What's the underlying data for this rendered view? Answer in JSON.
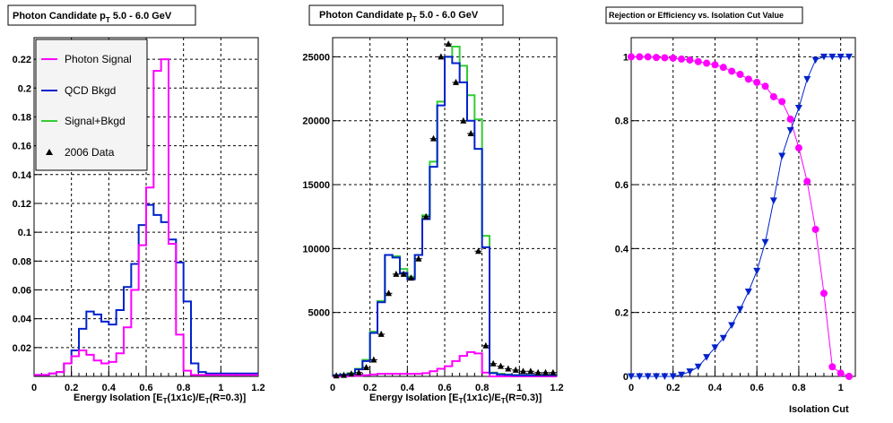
{
  "chart_data": [
    {
      "type": "step",
      "title_main": "Photon Candidate p",
      "title_sub": "T",
      "title_rest": " 5.0 - 6.0 GeV",
      "xlabel": "Energy Isolation [E",
      "xlabel_sub1": "T",
      "xlabel_mid": "(1x1c)/E",
      "xlabel_sub2": "T",
      "xlabel_end": "(R=0.3)]",
      "xlim": [
        0,
        1.2
      ],
      "ylim": [
        0,
        0.235
      ],
      "grid": true,
      "xticks": [
        "0",
        "0.2",
        "0.4",
        "0.6",
        "0.8",
        "1",
        "1.2"
      ],
      "xtick_values": [
        0,
        0.2,
        0.4,
        0.6,
        0.8,
        1.0,
        1.2
      ],
      "yticks": [
        "0.02",
        "0.04",
        "0.06",
        "0.08",
        "0.1",
        "0.12",
        "0.14",
        "0.16",
        "0.18",
        "0.2",
        "0.22"
      ],
      "ytick_values": [
        0.02,
        0.04,
        0.06,
        0.08,
        0.1,
        0.12,
        0.14,
        0.16,
        0.18,
        0.2,
        0.22
      ],
      "bin_width": 0.04,
      "series": [
        {
          "name": "Photon Signal",
          "color": "#ff00ff",
          "values": [
            0.001,
            0.001,
            0.002,
            0.003,
            0.009,
            0.014,
            0.018,
            0.015,
            0.011,
            0.009,
            0.01,
            0.016,
            0.034,
            0.06,
            0.091,
            0.131,
            0.212,
            0.22,
            0.092,
            0.029,
            0.004,
            0.001,
            0.001,
            0.001,
            0.001,
            0.001,
            0.001,
            0.001,
            0.001,
            0.001
          ]
        },
        {
          "name": "QCD Bkgd",
          "color": "#0022cc",
          "values": [
            0.001,
            0.001,
            0.002,
            0.003,
            0.009,
            0.018,
            0.033,
            0.045,
            0.043,
            0.038,
            0.036,
            0.046,
            0.062,
            0.078,
            0.105,
            0.119,
            0.112,
            0.107,
            0.095,
            0.079,
            0.052,
            0.009,
            0.003,
            0.002,
            0.002,
            0.002,
            0.002,
            0.002,
            0.002,
            0.002
          ]
        }
      ],
      "legend": {
        "position": "top-left",
        "entries": [
          {
            "label": "Photon Signal",
            "color": "#ff00ff",
            "marker": "line"
          },
          {
            "label": "QCD Bkgd",
            "color": "#0022cc",
            "marker": "line"
          },
          {
            "label": "Signal+Bkgd",
            "color": "#33cc33",
            "marker": "line"
          },
          {
            "label": "2006 Data",
            "color": "#000000",
            "marker": "triangle"
          }
        ]
      }
    },
    {
      "type": "step",
      "title_main": "Photon Candidate p",
      "title_sub": "T",
      "title_rest": " 5.0 - 6.0 GeV",
      "xlabel": "Energy Isolation [E",
      "xlabel_sub1": "T",
      "xlabel_mid": "(1x1c)/E",
      "xlabel_sub2": "T",
      "xlabel_end": "(R=0.3)]",
      "xlim": [
        0,
        1.2
      ],
      "ylim": [
        0,
        26500
      ],
      "grid": true,
      "xticks": [
        "0",
        "0.2",
        "0.4",
        "0.6",
        "0.8",
        "1",
        "1.2"
      ],
      "xtick_values": [
        0,
        0.2,
        0.4,
        0.6,
        0.8,
        1.0,
        1.2
      ],
      "yticks": [
        "5000",
        "10000",
        "15000",
        "20000",
        "25000"
      ],
      "ytick_values": [
        5000,
        10000,
        15000,
        20000,
        25000
      ],
      "bin_width": 0.04,
      "series": [
        {
          "name": "Photon Signal",
          "color": "#ff00ff",
          "values": [
            0,
            20,
            30,
            50,
            100,
            150,
            200,
            200,
            200,
            200,
            200,
            200,
            250,
            400,
            600,
            800,
            1200,
            1600,
            1900,
            1800,
            300,
            0,
            0,
            0,
            0,
            0,
            0,
            0,
            0,
            0
          ]
        },
        {
          "name": "Signal+Bkgd",
          "color": "#33cc33",
          "values": [
            100,
            150,
            250,
            600,
            1300,
            3500,
            5900,
            9500,
            9400,
            8400,
            7800,
            9500,
            12600,
            16800,
            21500,
            25000,
            25800,
            24300,
            22000,
            20100,
            11000,
            300,
            200,
            150,
            100,
            100,
            100,
            100,
            100,
            100
          ]
        },
        {
          "name": "QCD Bkgd",
          "color": "#0022cc",
          "values": [
            100,
            130,
            200,
            550,
            1200,
            3400,
            5800,
            9500,
            9300,
            8100,
            7600,
            9500,
            12300,
            16400,
            21200,
            25000,
            24500,
            23000,
            20000,
            17800,
            10100,
            250,
            150,
            120,
            100,
            100,
            100,
            100,
            100,
            100
          ]
        }
      ],
      "data_points": {
        "name": "2006 Data",
        "x": [
          0.02,
          0.06,
          0.1,
          0.14,
          0.18,
          0.22,
          0.26,
          0.3,
          0.34,
          0.38,
          0.42,
          0.46,
          0.5,
          0.54,
          0.58,
          0.62,
          0.66,
          0.7,
          0.74,
          0.78,
          0.82,
          0.86,
          0.9,
          0.94,
          0.98,
          1.02,
          1.06,
          1.1,
          1.14,
          1.18
        ],
        "y": [
          50,
          100,
          200,
          300,
          700,
          1300,
          3300,
          6500,
          8000,
          8000,
          7700,
          9200,
          12500,
          18600,
          25000,
          26000,
          23000,
          20000,
          19000,
          9800,
          2400,
          1000,
          800,
          600,
          500,
          400,
          400,
          300,
          300,
          300
        ]
      }
    },
    {
      "type": "line",
      "title": "Rejection or Efficiency vs. Isolation Cut Value",
      "xlabel": "Isolation Cut",
      "xlim": [
        0,
        1.07
      ],
      "ylim": [
        0,
        1.06
      ],
      "grid": true,
      "xticks": [
        "0",
        "0.2",
        "0.4",
        "0.6",
        "0.8",
        "1"
      ],
      "xtick_values": [
        0,
        0.2,
        0.4,
        0.6,
        0.8,
        1.0
      ],
      "yticks": [
        "0",
        "0.2",
        "0.4",
        "0.6",
        "0.8",
        "1"
      ],
      "ytick_values": [
        0,
        0.2,
        0.4,
        0.6,
        0.8,
        1.0
      ],
      "series": [
        {
          "color": "#ff00ff",
          "marker": "circle",
          "x": [
            0.0,
            0.04,
            0.08,
            0.12,
            0.16,
            0.2,
            0.24,
            0.28,
            0.32,
            0.36,
            0.4,
            0.44,
            0.48,
            0.52,
            0.56,
            0.6,
            0.64,
            0.68,
            0.72,
            0.76,
            0.8,
            0.84,
            0.88,
            0.92,
            0.96,
            1.0,
            1.04
          ],
          "y": [
            1.0,
            1.0,
            1.0,
            0.998,
            0.997,
            0.996,
            0.993,
            0.99,
            0.985,
            0.98,
            0.975,
            0.967,
            0.955,
            0.945,
            0.93,
            0.92,
            0.908,
            0.875,
            0.86,
            0.805,
            0.715,
            0.61,
            0.46,
            0.26,
            0.03,
            0.01,
            0.0
          ]
        },
        {
          "color": "#0022cc",
          "marker": "triangle-down",
          "x": [
            0.0,
            0.04,
            0.08,
            0.12,
            0.16,
            0.2,
            0.24,
            0.28,
            0.32,
            0.36,
            0.4,
            0.44,
            0.48,
            0.52,
            0.56,
            0.6,
            0.64,
            0.68,
            0.72,
            0.76,
            0.8,
            0.84,
            0.88,
            0.92,
            0.96,
            1.0,
            1.04
          ],
          "y": [
            0.0,
            0.0,
            0.0,
            0.0,
            0.0,
            0.0,
            0.005,
            0.015,
            0.03,
            0.06,
            0.09,
            0.12,
            0.16,
            0.21,
            0.265,
            0.33,
            0.42,
            0.55,
            0.69,
            0.77,
            0.84,
            0.93,
            0.99,
            1.0,
            1.0,
            1.0,
            1.0
          ]
        }
      ]
    }
  ]
}
